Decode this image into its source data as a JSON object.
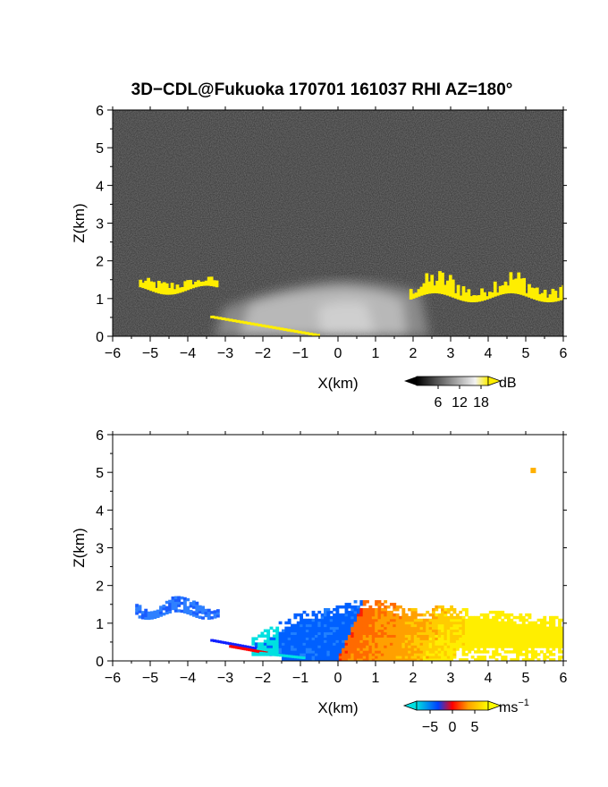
{
  "title": "3D−CDL@Fukuoka 170701 161037 RHI AZ=180°",
  "chart_data": [
    {
      "type": "heatmap",
      "name": "reflectivity",
      "xlabel": "X(km)",
      "ylabel": "Z(km)",
      "xlim": [
        -6,
        6
      ],
      "ylim": [
        0,
        6
      ],
      "xticks": [
        "−6",
        "−5",
        "−4",
        "−3",
        "−2",
        "−1",
        "0",
        "1",
        "2",
        "3",
        "4",
        "5",
        "6"
      ],
      "yticks": [
        "0",
        "1",
        "2",
        "3",
        "4",
        "5",
        "6"
      ],
      "colorbar": {
        "unit": "dB",
        "ticks": [
          "6",
          "12",
          "18"
        ],
        "tick_values": [
          6,
          12,
          18
        ],
        "range": [
          0,
          20
        ],
        "colors": [
          "#000000",
          "#ffffff",
          "#ffee00"
        ]
      },
      "background_color": "#2e2e2e",
      "features": [
        {
          "kind": "boundary-layer-echo",
          "x": [
            -2.6,
            2.4
          ],
          "z_top": 1.6,
          "color": "grey-to-white"
        },
        {
          "kind": "strong-echo",
          "segments": [
            {
              "x": [
                -5.3,
                -3.2
              ],
              "z": [
                1.3,
                1.6
              ]
            },
            {
              "x": [
                1.9,
                6.0
              ],
              "z": [
                1.1,
                1.7
              ]
            }
          ],
          "color": "#ffee00"
        },
        {
          "kind": "ground-clutter",
          "x": [
            -3.4,
            -0.5
          ],
          "z": [
            0.5,
            0.0
          ],
          "color": "#ffee00"
        }
      ]
    },
    {
      "type": "heatmap",
      "name": "doppler-velocity",
      "xlabel": "X(km)",
      "ylabel": "Z(km)",
      "xlim": [
        -6,
        6
      ],
      "ylim": [
        0,
        6
      ],
      "xticks": [
        "−6",
        "−5",
        "−4",
        "−3",
        "−2",
        "−1",
        "0",
        "1",
        "2",
        "3",
        "4",
        "5",
        "6"
      ],
      "yticks": [
        "0",
        "1",
        "2",
        "3",
        "4",
        "5",
        "6"
      ],
      "colorbar": {
        "unit": "ms",
        "unit_exponent": "−1",
        "ticks": [
          "−5",
          "0",
          "5"
        ],
        "tick_values": [
          -5,
          0,
          5
        ],
        "range": [
          -8,
          8
        ],
        "colors": [
          "#00e0e0",
          "#0040ff",
          "#ff0000",
          "#ffa000",
          "#ffff00"
        ]
      },
      "background_color": "#ffffff",
      "features": [
        {
          "kind": "negative-velocity",
          "x": [
            -2.2,
            0.1
          ],
          "z_top": 1.4,
          "value": -4
        },
        {
          "kind": "positive-velocity",
          "x": [
            -1.0,
            6.0
          ],
          "z_top": 1.7,
          "value": 3
        },
        {
          "kind": "left-patch",
          "x": [
            -5.4,
            -3.2
          ],
          "z": [
            1.2,
            1.6
          ],
          "value": -4
        },
        {
          "kind": "isolated-point",
          "x": 5.2,
          "z": 5.05,
          "value": 5
        }
      ]
    }
  ]
}
